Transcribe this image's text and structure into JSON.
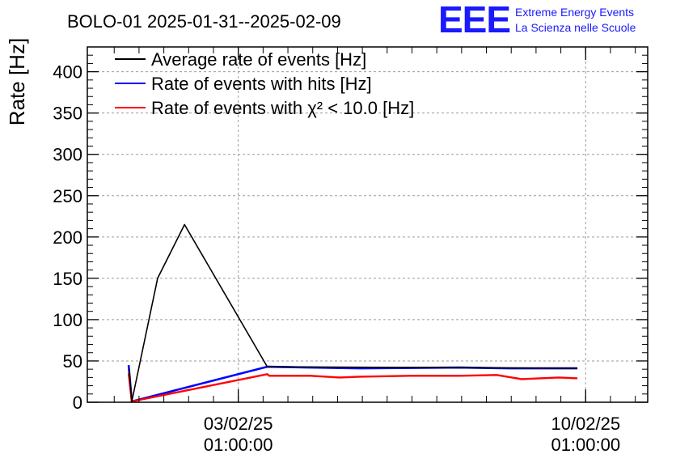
{
  "chart_data": {
    "type": "line",
    "title": "BOLO-01 2025-01-31--2025-02-09",
    "ylabel": "Rate [Hz]",
    "xlabel": "",
    "xlim": [
      "2025-01-31T00:00",
      "2025-02-11T07:00"
    ],
    "ylim": [
      0,
      430
    ],
    "yticks": [
      0,
      50,
      100,
      150,
      200,
      250,
      300,
      350,
      400
    ],
    "xticks": [
      {
        "value": "2025-02-03T01:00",
        "line1": "03/02/25",
        "line2": "01:00:00"
      },
      {
        "value": "2025-02-10T01:00",
        "line1": "10/02/25",
        "line2": "01:00:00"
      }
    ],
    "grid": true,
    "legend_position": "top-left",
    "series": [
      {
        "name": "Average rate of events [Hz]",
        "color": "#000000",
        "points": [
          [
            "2025-01-31T20:10",
            40
          ],
          [
            "2025-01-31T21:30",
            1
          ],
          [
            "2025-02-01T10:00",
            150
          ],
          [
            "2025-02-01T23:00",
            215
          ],
          [
            "2025-02-03T15:00",
            43
          ],
          [
            "2025-02-09T21:00",
            41
          ]
        ]
      },
      {
        "name": "Rate of events with hits [Hz]",
        "color": "#0000ff",
        "points": [
          [
            "2025-01-31T20:00",
            45
          ],
          [
            "2025-01-31T21:30",
            1
          ],
          [
            "2025-02-03T15:00",
            43
          ],
          [
            "2025-02-04T12:00",
            42
          ],
          [
            "2025-02-05T12:00",
            41
          ],
          [
            "2025-02-06T12:00",
            41.5
          ],
          [
            "2025-02-07T12:00",
            42
          ],
          [
            "2025-02-08T12:00",
            41
          ],
          [
            "2025-02-09T21:00",
            41
          ]
        ]
      },
      {
        "name": "Rate of events with χ² < 10.0 [Hz]",
        "color": "#ff0000",
        "points": [
          [
            "2025-01-31T20:00",
            35
          ],
          [
            "2025-01-31T21:30",
            1
          ],
          [
            "2025-02-03T15:00",
            34
          ],
          [
            "2025-02-03T16:00",
            32
          ],
          [
            "2025-02-04T12:00",
            32
          ],
          [
            "2025-02-05T02:00",
            30
          ],
          [
            "2025-02-05T12:00",
            31
          ],
          [
            "2025-02-06T12:00",
            32
          ],
          [
            "2025-02-07T12:00",
            32
          ],
          [
            "2025-02-08T06:00",
            33
          ],
          [
            "2025-02-08T18:00",
            28
          ],
          [
            "2025-02-09T12:00",
            30
          ],
          [
            "2025-02-09T21:00",
            29
          ]
        ]
      }
    ]
  },
  "logo": {
    "letters": "EEE",
    "line1": "Extreme Energy Events",
    "line2": "La Scienza nelle Scuole",
    "color": "#1a1aff"
  }
}
